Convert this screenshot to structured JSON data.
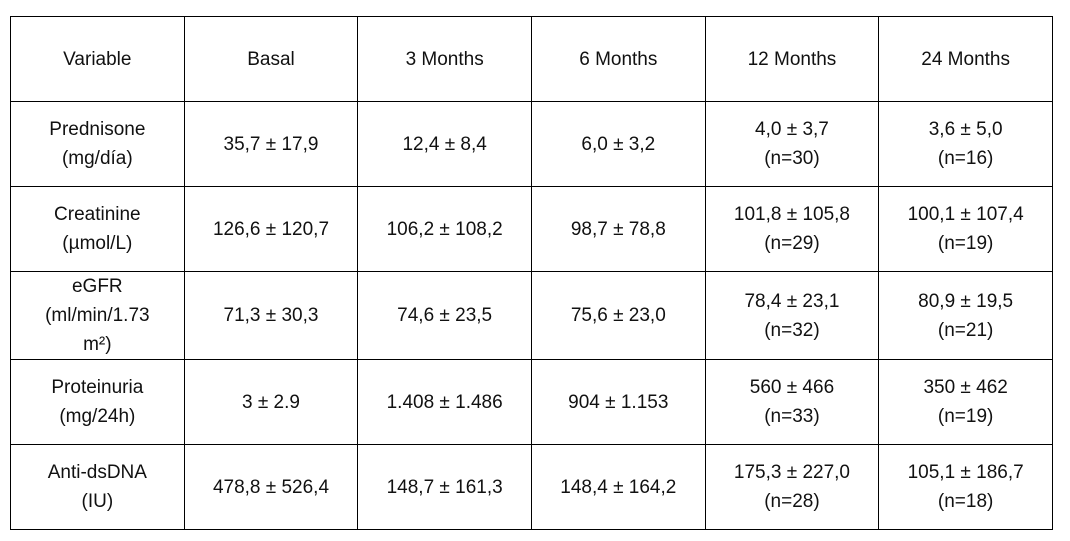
{
  "table": {
    "header": [
      "Variable",
      "Basal",
      "3 Months",
      "6 Months",
      "12 Months",
      "24 Months"
    ],
    "rows": [
      [
        [
          "Prednisone",
          "(mg/día)"
        ],
        [
          "35,7 ± 17,9"
        ],
        [
          "12,4 ± 8,4"
        ],
        [
          "6,0 ± 3,2"
        ],
        [
          "4,0 ± 3,7",
          "(n=30)"
        ],
        [
          "3,6 ± 5,0",
          "(n=16)"
        ]
      ],
      [
        [
          "Creatinine",
          "(µmol/L)"
        ],
        [
          "126,6 ± 120,7"
        ],
        [
          "106,2 ± 108,2"
        ],
        [
          "98,7 ± 78,8"
        ],
        [
          "101,8 ± 105,8",
          "(n=29)"
        ],
        [
          "100,1 ± 107,4",
          "(n=19)"
        ]
      ],
      [
        [
          "eGFR",
          "(ml/min/1.73",
          "m²)"
        ],
        [
          "71,3 ± 30,3"
        ],
        [
          "74,6 ± 23,5"
        ],
        [
          "75,6 ± 23,0"
        ],
        [
          "78,4 ± 23,1",
          "(n=32)"
        ],
        [
          "80,9 ± 19,5",
          "(n=21)"
        ]
      ],
      [
        [
          "Proteinuria",
          "(mg/24h)"
        ],
        [
          "3 ± 2.9"
        ],
        [
          "1.408 ± 1.486"
        ],
        [
          "904 ± 1.153"
        ],
        [
          "560 ± 466",
          "(n=33)"
        ],
        [
          "350 ± 462",
          "(n=19)"
        ]
      ],
      [
        [
          "Anti-dsDNA",
          "(IU)"
        ],
        [
          "478,8 ± 526,4"
        ],
        [
          "148,7 ± 161,3"
        ],
        [
          "148,4 ± 164,2"
        ],
        [
          "175,3 ± 227,0",
          "(n=28)"
        ],
        [
          "105,1 ± 186,7",
          "(n=18)"
        ]
      ]
    ]
  }
}
